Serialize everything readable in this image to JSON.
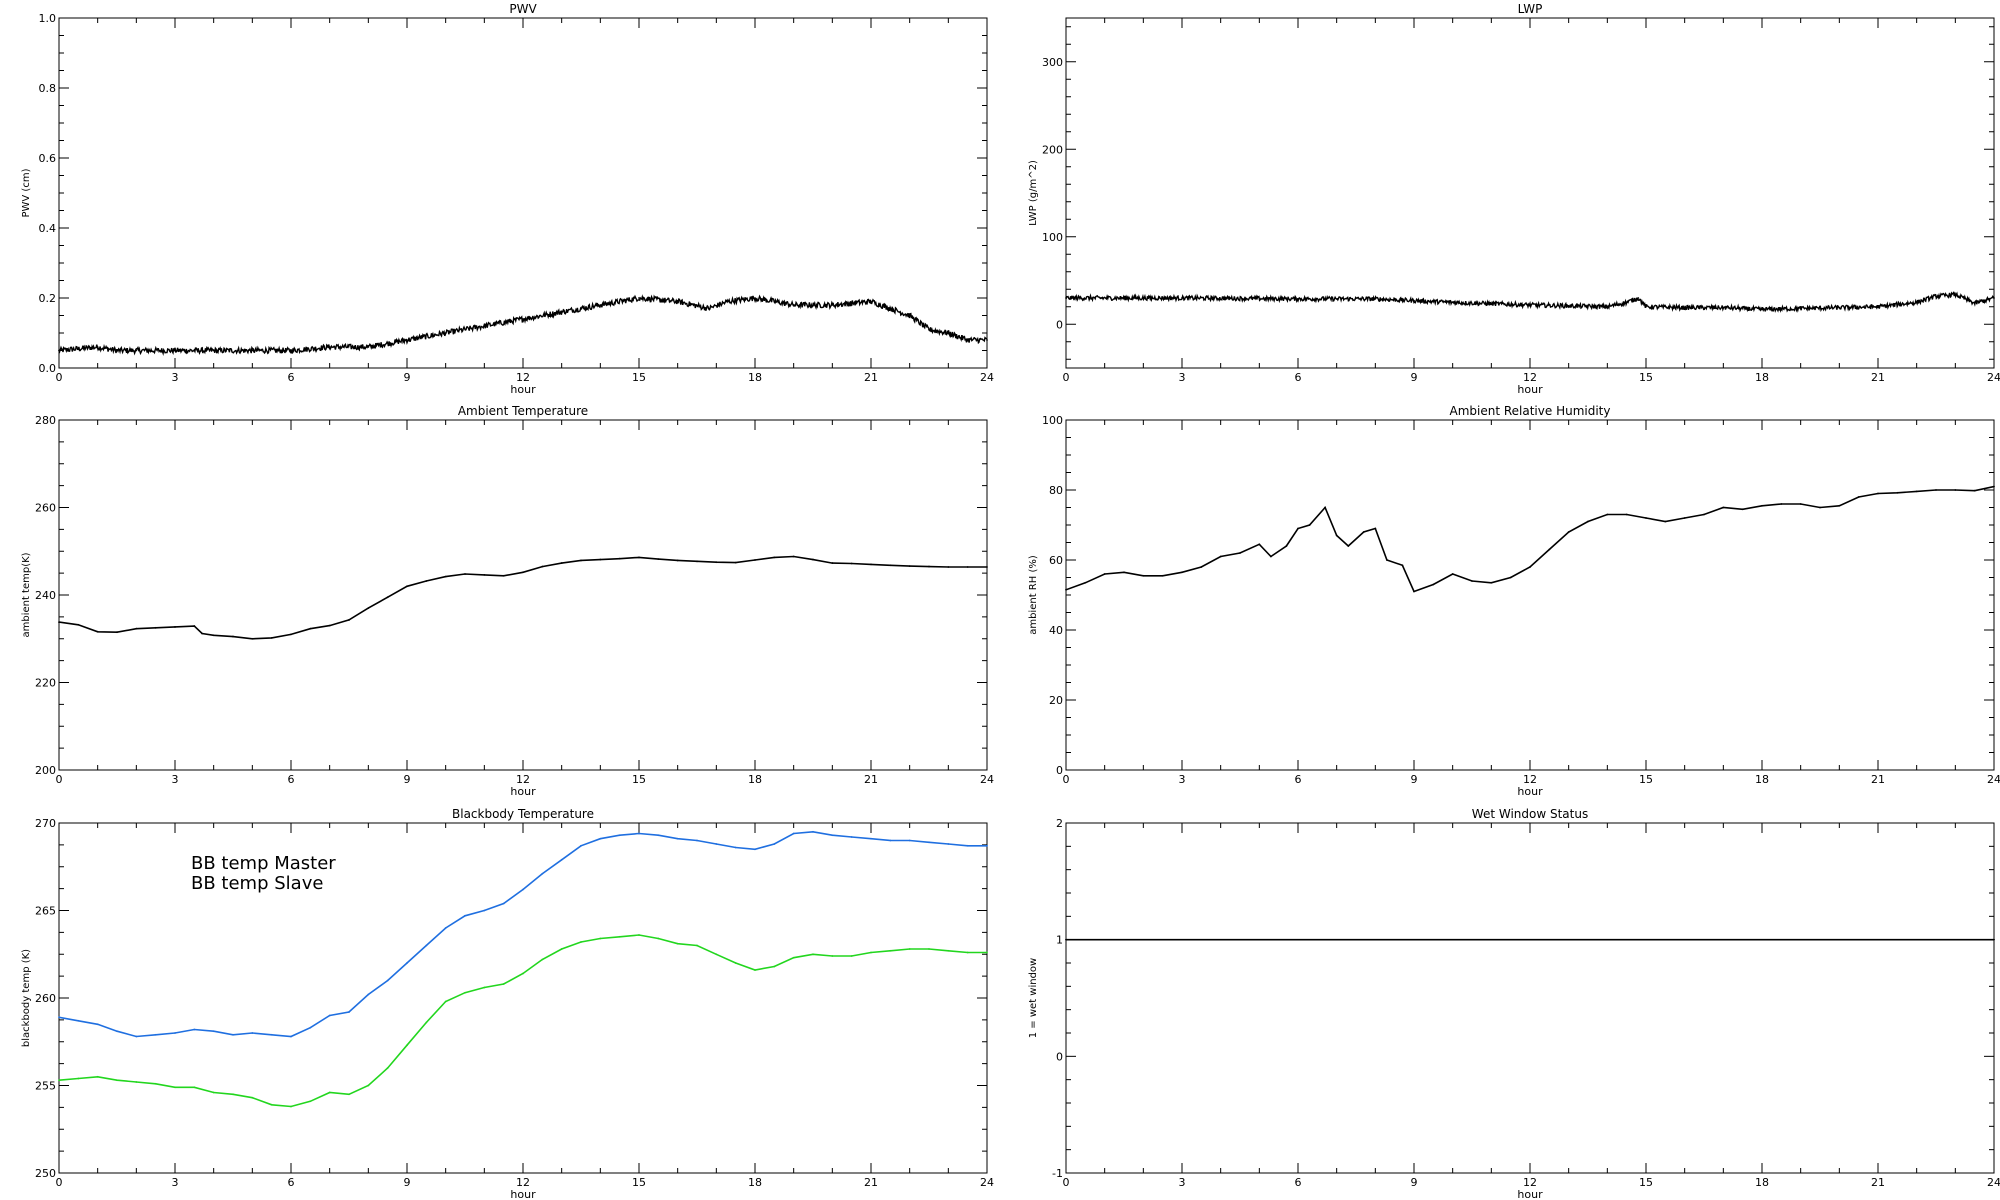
{
  "chart_data": [
    {
      "type": "line",
      "title": "PWV",
      "xlabel": "hour",
      "ylabel": "PWV (cm)",
      "xlim": [
        0,
        24
      ],
      "ylim": [
        0.0,
        1.0
      ],
      "xticks": [
        "0",
        "3",
        "6",
        "9",
        "12",
        "15",
        "18",
        "21",
        "24"
      ],
      "yticks": [
        "0.0",
        "0.2",
        "0.4",
        "0.6",
        "0.8",
        "1.0"
      ],
      "yticks_values": [
        0.0,
        0.2,
        0.4,
        0.6,
        0.8,
        1.0
      ],
      "series": [
        {
          "color": "#000000",
          "noisy": true,
          "x": [
            0,
            1,
            1.5,
            2,
            3,
            4,
            5,
            6,
            7,
            8,
            9,
            10,
            11,
            12,
            13,
            14,
            15,
            16,
            16.8,
            17.3,
            18,
            19,
            20,
            21,
            21.5,
            22,
            22.5,
            23,
            23.5,
            24
          ],
          "y": [
            0.05,
            0.06,
            0.05,
            0.05,
            0.05,
            0.05,
            0.05,
            0.05,
            0.06,
            0.06,
            0.08,
            0.1,
            0.12,
            0.14,
            0.16,
            0.18,
            0.2,
            0.19,
            0.17,
            0.19,
            0.2,
            0.18,
            0.18,
            0.19,
            0.17,
            0.15,
            0.11,
            0.1,
            0.08,
            0.08
          ]
        }
      ]
    },
    {
      "type": "line",
      "title": "LWP",
      "xlabel": "hour",
      "ylabel": "LWP (g/m^2)",
      "xlim": [
        0,
        24
      ],
      "ylim": [
        -50,
        350
      ],
      "xticks": [
        "0",
        "3",
        "6",
        "9",
        "12",
        "15",
        "18",
        "21",
        "24"
      ],
      "yticks": [
        "0",
        "100",
        "200",
        "300"
      ],
      "yticks_values": [
        0,
        100,
        200,
        300
      ],
      "series": [
        {
          "color": "#000000",
          "noisy": true,
          "x": [
            0,
            3,
            6,
            8,
            9,
            10,
            12,
            13,
            14,
            14.5,
            14.8,
            15,
            16,
            17,
            18,
            19,
            20,
            21,
            22,
            22.5,
            23,
            23.5,
            24
          ],
          "y": [
            30,
            30,
            29,
            29,
            27,
            25,
            22,
            21,
            20,
            25,
            30,
            20,
            19,
            19,
            17,
            18,
            19,
            20,
            25,
            32,
            34,
            24,
            30
          ]
        }
      ]
    },
    {
      "type": "line",
      "title": "Ambient Temperature",
      "xlabel": "hour",
      "ylabel": "ambient temp(K)",
      "xlim": [
        0,
        24
      ],
      "ylim": [
        200,
        280
      ],
      "xticks": [
        "0",
        "3",
        "6",
        "9",
        "12",
        "15",
        "18",
        "21",
        "24"
      ],
      "yticks": [
        "200",
        "220",
        "240",
        "260",
        "280"
      ],
      "yticks_values": [
        200,
        220,
        240,
        260,
        280
      ],
      "series": [
        {
          "color": "#000000",
          "x": [
            0,
            0.5,
            1,
            1.5,
            2,
            2.5,
            3,
            3.5,
            3.7,
            4,
            4.5,
            5,
            5.5,
            6,
            6.5,
            7,
            7.5,
            8,
            8.5,
            9,
            9.5,
            10,
            10.5,
            11,
            11.5,
            12,
            12.5,
            13,
            13.5,
            14,
            14.5,
            15,
            15.5,
            16,
            16.5,
            17,
            17.5,
            18,
            18.5,
            19,
            19.5,
            20,
            20.5,
            21,
            21.5,
            22,
            22.5,
            23,
            23.5,
            24
          ],
          "y": [
            233.8,
            233.2,
            231.6,
            231.5,
            232.3,
            232.5,
            232.7,
            232.9,
            231.2,
            230.8,
            230.5,
            230.0,
            230.2,
            231.0,
            232.3,
            233.0,
            234.3,
            237.0,
            239.5,
            242.0,
            243.2,
            244.2,
            244.8,
            244.6,
            244.4,
            245.2,
            246.5,
            247.3,
            247.9,
            248.1,
            248.3,
            248.6,
            248.2,
            247.9,
            247.7,
            247.5,
            247.4,
            248.0,
            248.6,
            248.8,
            248.1,
            247.3,
            247.2,
            247.0,
            246.8,
            246.6,
            246.5,
            246.4,
            246.4,
            246.4
          ]
        }
      ]
    },
    {
      "type": "line",
      "title": "Ambient Relative Humidity",
      "xlabel": "hour",
      "ylabel": "ambient RH (%)",
      "xlim": [
        0,
        24
      ],
      "ylim": [
        0,
        100
      ],
      "xticks": [
        "0",
        "3",
        "6",
        "9",
        "12",
        "15",
        "18",
        "21",
        "24"
      ],
      "yticks": [
        "0",
        "20",
        "40",
        "60",
        "80",
        "100"
      ],
      "yticks_values": [
        0,
        20,
        40,
        60,
        80,
        100
      ],
      "series": [
        {
          "color": "#000000",
          "x": [
            0,
            0.5,
            1,
            1.5,
            2,
            2.5,
            3,
            3.5,
            4,
            4.5,
            5,
            5.3,
            5.7,
            6,
            6.3,
            6.7,
            7,
            7.3,
            7.7,
            8,
            8.3,
            8.7,
            9,
            9.5,
            10,
            10.5,
            11,
            11.5,
            12,
            12.5,
            13,
            13.5,
            14,
            14.5,
            15,
            15.5,
            16,
            16.5,
            17,
            17.5,
            18,
            18.5,
            19,
            19.5,
            20,
            20.5,
            21,
            21.5,
            22,
            22.5,
            23,
            23.5,
            24
          ],
          "y": [
            51.5,
            53.5,
            56,
            56.5,
            55.5,
            55.5,
            56.5,
            58,
            61,
            62,
            64.5,
            61,
            64,
            69,
            70,
            75,
            67,
            64,
            68,
            69,
            60,
            58.5,
            51,
            53,
            56,
            54,
            53.5,
            55,
            58,
            63,
            68,
            71,
            73,
            73,
            72,
            71,
            72,
            73,
            75,
            74.5,
            75.5,
            76,
            76,
            75,
            75.5,
            78,
            79,
            79.2,
            79.6,
            80,
            80,
            79.8,
            81
          ]
        }
      ]
    },
    {
      "type": "line",
      "title": "Blackbody Temperature",
      "xlabel": "hour",
      "ylabel": "blackbody temp (K)",
      "xlim": [
        0,
        24
      ],
      "ylim": [
        250,
        270
      ],
      "xticks": [
        "0",
        "3",
        "6",
        "9",
        "12",
        "15",
        "18",
        "21",
        "24"
      ],
      "yticks": [
        "250",
        "255",
        "260",
        "265",
        "270"
      ],
      "yticks_values": [
        250,
        255,
        260,
        265,
        270
      ],
      "legend": "upper-left",
      "series": [
        {
          "name": "BB temp Master",
          "color": "#1f6fe0",
          "x": [
            0,
            0.5,
            1,
            1.5,
            2,
            2.5,
            3,
            3.5,
            4,
            4.5,
            5,
            5.5,
            6,
            6.5,
            7,
            7.5,
            8,
            8.5,
            9,
            9.5,
            10,
            10.5,
            11,
            11.5,
            12,
            12.5,
            13,
            13.5,
            14,
            14.5,
            15,
            15.5,
            16,
            16.5,
            17,
            17.5,
            18,
            18.5,
            19,
            19.5,
            20,
            20.5,
            21,
            21.5,
            22,
            22.5,
            23,
            23.5,
            24
          ],
          "y": [
            258.9,
            258.7,
            258.5,
            258.1,
            257.8,
            257.9,
            258.0,
            258.2,
            258.1,
            257.9,
            258.0,
            257.9,
            257.8,
            258.3,
            259.0,
            259.2,
            260.2,
            261.0,
            262.0,
            263.0,
            264.0,
            264.7,
            265.0,
            265.4,
            266.2,
            267.1,
            267.9,
            268.7,
            269.1,
            269.3,
            269.4,
            269.3,
            269.1,
            269.0,
            268.8,
            268.6,
            268.5,
            268.8,
            269.4,
            269.5,
            269.3,
            269.2,
            269.1,
            269.0,
            269.0,
            268.9,
            268.8,
            268.7,
            268.7
          ]
        },
        {
          "name": "BB temp Slave",
          "color": "#22d61e",
          "x": [
            0,
            0.5,
            1,
            1.5,
            2,
            2.5,
            3,
            3.5,
            4,
            4.5,
            5,
            5.5,
            6,
            6.5,
            7,
            7.5,
            8,
            8.5,
            9,
            9.5,
            10,
            10.5,
            11,
            11.5,
            12,
            12.5,
            13,
            13.5,
            14,
            14.5,
            15,
            15.5,
            16,
            16.5,
            17,
            17.5,
            18,
            18.5,
            19,
            19.5,
            20,
            20.5,
            21,
            21.5,
            22,
            22.5,
            23,
            23.5,
            24
          ],
          "y": [
            255.3,
            255.4,
            255.5,
            255.3,
            255.2,
            255.1,
            254.9,
            254.9,
            254.6,
            254.5,
            254.3,
            253.9,
            253.8,
            254.1,
            254.6,
            254.5,
            255.0,
            256.0,
            257.3,
            258.6,
            259.8,
            260.3,
            260.6,
            260.8,
            261.4,
            262.2,
            262.8,
            263.2,
            263.4,
            263.5,
            263.6,
            263.4,
            263.1,
            263.0,
            262.5,
            262.0,
            261.6,
            261.8,
            262.3,
            262.5,
            262.4,
            262.4,
            262.6,
            262.7,
            262.8,
            262.8,
            262.7,
            262.6,
            262.6
          ]
        }
      ]
    },
    {
      "type": "line",
      "title": "Wet Window Status",
      "xlabel": "hour",
      "ylabel": "1 = wet window",
      "xlim": [
        0,
        24
      ],
      "ylim": [
        -1,
        2
      ],
      "xticks": [
        "0",
        "3",
        "6",
        "9",
        "12",
        "15",
        "18",
        "21",
        "24"
      ],
      "yticks": [
        "-1",
        "0",
        "1",
        "2"
      ],
      "yticks_values": [
        -1,
        0,
        1,
        2
      ],
      "series": [
        {
          "color": "#000000",
          "x": [
            0,
            24
          ],
          "y": [
            1,
            1
          ]
        }
      ]
    }
  ]
}
